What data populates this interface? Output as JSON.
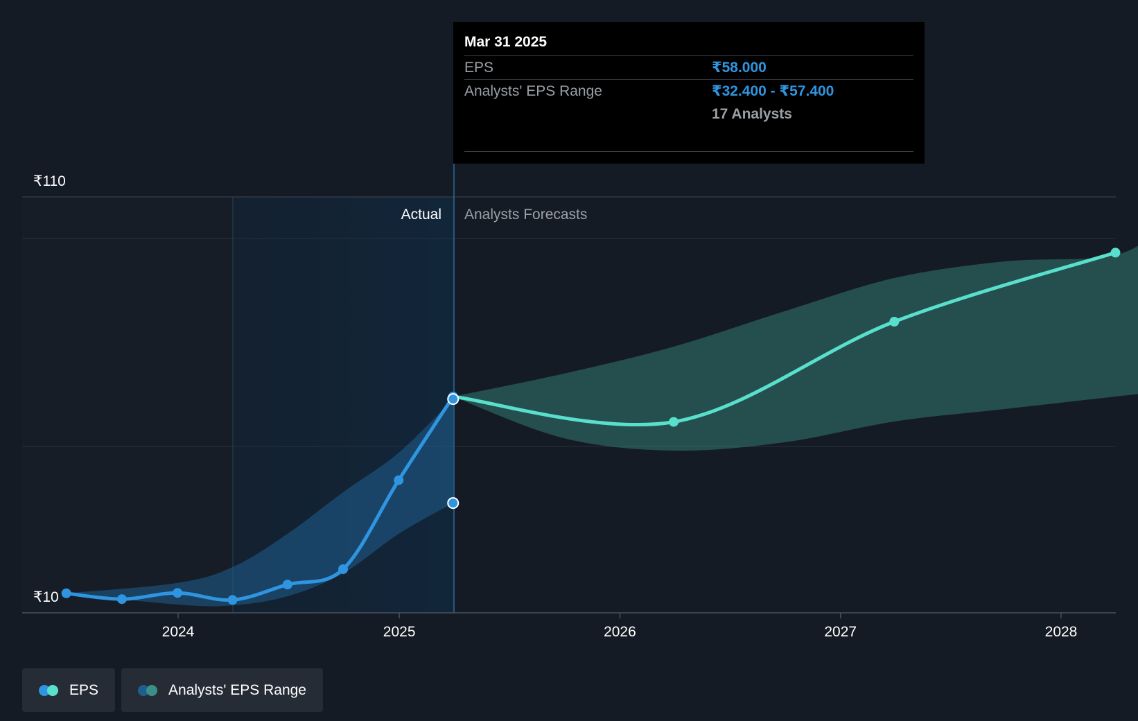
{
  "chart_data": {
    "type": "line",
    "title": "",
    "currency_symbol": "₹",
    "y_axis_labels": [
      "₹110",
      "₹10"
    ],
    "ylim": [
      10,
      110
    ],
    "x_axis": {
      "ticks": [
        "2024",
        "2025",
        "2026",
        "2027",
        "2028"
      ]
    },
    "regions": {
      "actual_label": "Actual",
      "forecast_label": "Analysts Forecasts",
      "divider_date": "2025-03-31",
      "highlight_start": "2024-03-31"
    },
    "series": [
      {
        "name": "EPS",
        "kind": "actual",
        "color": "#2f95e0",
        "points": [
          {
            "x": "2023-06-30",
            "y": 10.7
          },
          {
            "x": "2023-09-30",
            "y": 9.3
          },
          {
            "x": "2023-12-31",
            "y": 10.8
          },
          {
            "x": "2024-03-31",
            "y": 9.1
          },
          {
            "x": "2024-06-30",
            "y": 12.8
          },
          {
            "x": "2024-09-30",
            "y": 16.5
          },
          {
            "x": "2024-12-31",
            "y": 37.9
          },
          {
            "x": "2025-03-31",
            "y": 58.0
          }
        ]
      },
      {
        "name": "EPS",
        "kind": "forecast",
        "color": "#58e0cc",
        "points": [
          {
            "x": "2025-03-31",
            "y": 58.0
          },
          {
            "x": "2026-03-31",
            "y": 51.9
          },
          {
            "x": "2027-03-31",
            "y": 76.0
          },
          {
            "x": "2028-03-31",
            "y": 92.6
          }
        ]
      },
      {
        "name": "Analysts' EPS Range",
        "kind": "range-past",
        "color": "#2f95e0",
        "points": [
          {
            "x": "2023-06-30",
            "low": 10.7,
            "high": 10.7
          },
          {
            "x": "2023-12-31",
            "low": 8.0,
            "high": 13.2
          },
          {
            "x": "2024-03-31",
            "low": 7.8,
            "high": 17.0
          },
          {
            "x": "2024-06-30",
            "low": 10.0,
            "high": 25.0
          },
          {
            "x": "2024-09-30",
            "low": 15.5,
            "high": 35.0
          },
          {
            "x": "2024-12-31",
            "low": 25.0,
            "high": 44.5
          },
          {
            "x": "2025-03-31",
            "low": 32.4,
            "high": 57.4
          }
        ]
      },
      {
        "name": "Analysts' EPS Range",
        "kind": "range-forecast",
        "color": "#58e0cc",
        "points": [
          {
            "x": "2025-03-31",
            "low": 58.0,
            "high": 58.0
          },
          {
            "x": "2025-09-30",
            "low": 48.0,
            "high": 63.5
          },
          {
            "x": "2026-03-31",
            "low": 45.0,
            "high": 70.0
          },
          {
            "x": "2026-09-30",
            "low": 47.0,
            "high": 78.5
          },
          {
            "x": "2027-03-31",
            "low": 52.0,
            "high": 86.5
          },
          {
            "x": "2027-09-30",
            "low": 55.0,
            "high": 90.5
          },
          {
            "x": "2028-03-31",
            "low": 58.0,
            "high": 92.0
          },
          {
            "x": "2028-06-30",
            "low": 59.5,
            "high": 100.0
          }
        ]
      }
    ],
    "grid": true
  },
  "tooltip": {
    "date": "Mar 31 2025",
    "eps_label": "EPS",
    "eps_value": "₹58.000",
    "range_label": "Analysts' EPS Range",
    "range_low": "₹32.400",
    "range_sep": " - ",
    "range_high": "₹57.400",
    "analysts": "17 Analysts"
  },
  "legend": [
    {
      "label": "EPS",
      "colors": [
        "#2f95e0",
        "#58e0cc"
      ]
    },
    {
      "label": "Analysts' EPS Range",
      "colors": [
        "#1f5f8f",
        "#3a8f86"
      ]
    }
  ]
}
